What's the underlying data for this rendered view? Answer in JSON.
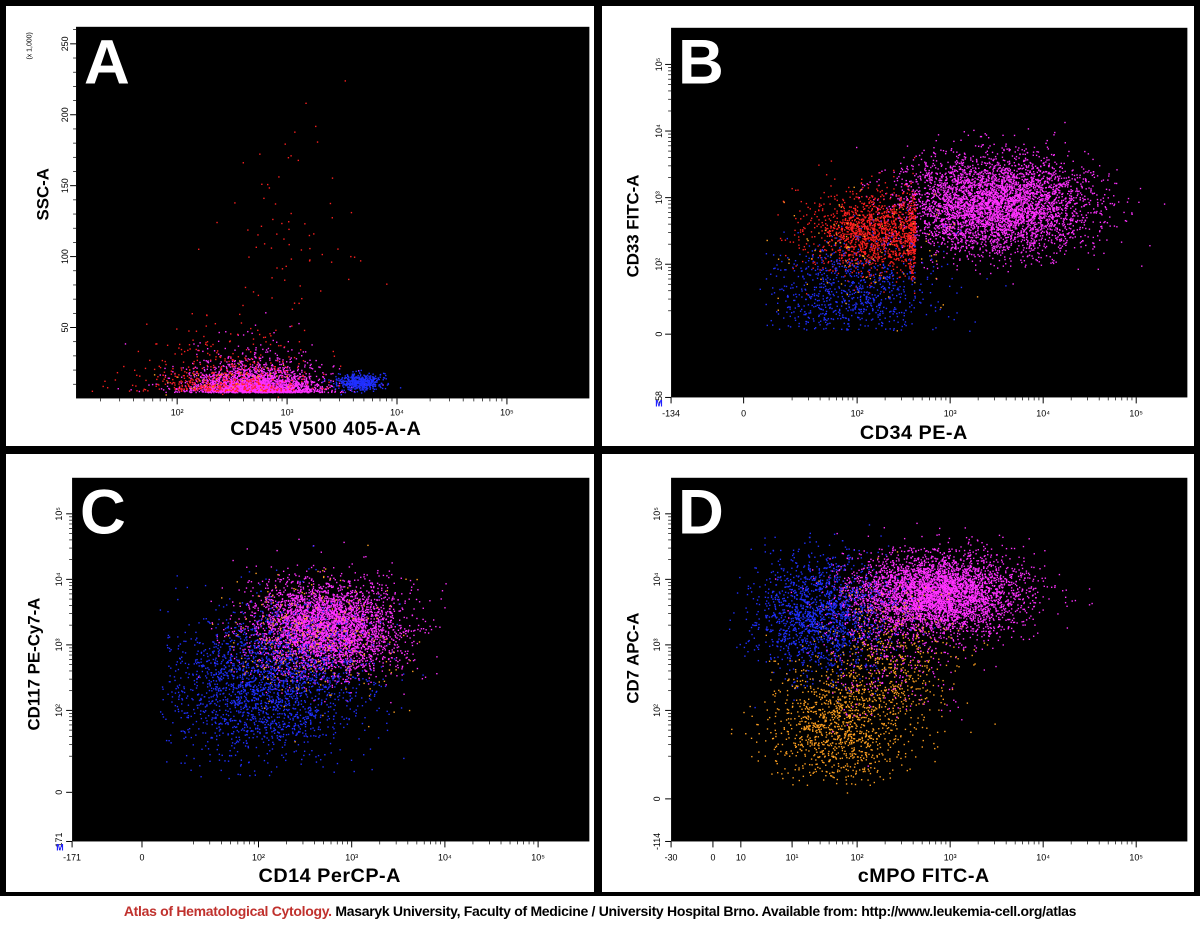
{
  "footer": {
    "atlas_name": "Atlas of Hematological Cytology.",
    "credit": "Masaryk University, Faculty of Medicine / University Hospital Brno. Available from: http://www.leukemia-cell.org/atlas"
  },
  "colors": {
    "red": "#ff2020",
    "magenta": "#ff30ff",
    "blue": "#2030ff",
    "orange": "#ffa020"
  },
  "chart_data": [
    {
      "panel": "A",
      "type": "scatter",
      "xlabel": "CD45 V500 405-A-A",
      "ylabel": "SSC-A",
      "y_scale_note": "(x 1,000)",
      "x_scale": "log",
      "y_scale": "linear",
      "x_ticks": [
        "10²",
        "10³",
        "10⁴",
        "10⁵"
      ],
      "y_ticks": [
        "50",
        "100",
        "150",
        "200",
        "250"
      ],
      "xlim": [
        10,
        400000
      ],
      "ylim": [
        0,
        262
      ],
      "populations": [
        {
          "color": "magenta",
          "count": 2600,
          "x": 500,
          "y": 15,
          "sx": 0.3,
          "sy": 7,
          "ydist": "exp"
        },
        {
          "color": "red",
          "count": 500,
          "x": 250,
          "y": 18,
          "sx": 0.35,
          "sy": 12,
          "ydist": "exp"
        },
        {
          "color": "red",
          "count": 90,
          "x": 900,
          "y": 100,
          "sx": 0.3,
          "sy": 45
        },
        {
          "color": "blue",
          "count": 500,
          "x": 4500,
          "y": 12,
          "sx": 0.1,
          "sy": 3
        },
        {
          "color": "orange",
          "count": 40,
          "x": 300,
          "y": 14,
          "sx": 0.3,
          "sy": 6
        }
      ]
    },
    {
      "panel": "B",
      "type": "scatter",
      "xlabel": "CD34 PE-A",
      "ylabel": "CD33 FITC-A",
      "x_scale": "log",
      "y_scale": "log",
      "x_ticks": [
        "-134",
        "0",
        "10²",
        "10³",
        "10⁴",
        "10⁵"
      ],
      "y_ticks": [
        "-58",
        "0",
        "10²",
        "10³",
        "10⁴",
        "10⁵"
      ],
      "xlim": [
        -134,
        262000
      ],
      "ylim": [
        -58,
        262000
      ],
      "populations": [
        {
          "color": "magenta",
          "count": 4500,
          "x": 3000,
          "y": 800,
          "sx": 0.5,
          "sy": 0.35
        },
        {
          "color": "red",
          "count": 1600,
          "x": 150,
          "y": 300,
          "sx": 0.35,
          "sy": 0.3,
          "xmax": 420
        },
        {
          "color": "blue",
          "count": 800,
          "x": 80,
          "y": 40,
          "sx": 0.45,
          "sy": 0.4
        },
        {
          "color": "orange",
          "count": 90,
          "x": 120,
          "y": 150,
          "sx": 0.5,
          "sy": 0.45
        }
      ],
      "marker": "M"
    },
    {
      "panel": "C",
      "type": "scatter",
      "xlabel": "CD14 PerCP-A",
      "ylabel": "CD117 PE-Cy7-A",
      "x_scale": "log",
      "y_scale": "log",
      "x_ticks": [
        "-171",
        "0",
        "10²",
        "10³",
        "10⁴",
        "10⁵"
      ],
      "y_ticks": [
        "-171",
        "0",
        "10²",
        "10³",
        "10⁴",
        "10⁵"
      ],
      "xlim": [
        -171,
        262000
      ],
      "ylim": [
        -171,
        262000
      ],
      "populations": [
        {
          "color": "magenta",
          "count": 4000,
          "x": 500,
          "y": 1800,
          "sx": 0.4,
          "sy": 0.35
        },
        {
          "color": "blue",
          "count": 2200,
          "x": 120,
          "y": 250,
          "sx": 0.5,
          "sy": 0.55
        },
        {
          "color": "orange",
          "count": 260,
          "x": 400,
          "y": 1200,
          "sx": 0.45,
          "sy": 0.45
        }
      ],
      "marker": "M"
    },
    {
      "panel": "D",
      "type": "scatter",
      "xlabel": "cMPO FITC-A",
      "ylabel": "CD7 APC-A",
      "x_scale": "log",
      "y_scale": "log",
      "x_ticks": [
        "-30",
        "0",
        "10",
        "10¹",
        "10²",
        "10³",
        "10⁴",
        "10⁵"
      ],
      "y_ticks": [
        "-114",
        "0",
        "10²",
        "10³",
        "10⁴",
        "10⁵"
      ],
      "xlim": [
        -30,
        262000
      ],
      "ylim": [
        -114,
        262000
      ],
      "populations": [
        {
          "color": "magenta",
          "count": 4500,
          "x": 700,
          "y": 6000,
          "sx": 0.45,
          "sy": 0.3
        },
        {
          "color": "blue",
          "count": 1600,
          "x": 40,
          "y": 3000,
          "sx": 0.35,
          "sy": 0.45
        },
        {
          "color": "orange",
          "count": 1100,
          "x": 60,
          "y": 60,
          "sx": 0.35,
          "sy": 0.45
        },
        {
          "color": "orange",
          "count": 500,
          "x": 250,
          "y": 500,
          "sx": 0.35,
          "sy": 0.55
        },
        {
          "color": "magenta",
          "count": 300,
          "x": 200,
          "y": 700,
          "sx": 0.35,
          "sy": 0.5
        }
      ]
    }
  ]
}
